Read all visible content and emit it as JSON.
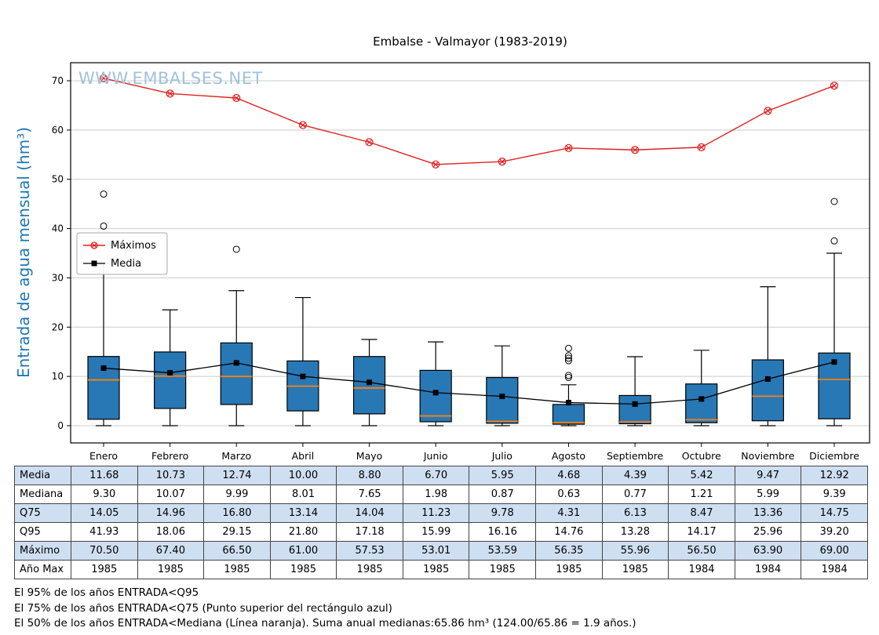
{
  "title": "Embalse - Valmayor (1983-2019)",
  "watermark": "WWW.EMBALSES.NET",
  "chart_data": {
    "type": "boxplot",
    "categories": [
      "Enero",
      "Febrero",
      "Marzo",
      "Abril",
      "Mayo",
      "Junio",
      "Julio",
      "Agosto",
      "Septiembre",
      "Octubre",
      "Noviembre",
      "Diciembre"
    ],
    "ylabel": "Entrada de agua mensual (hm³)",
    "yticks": [
      0,
      10,
      20,
      30,
      40,
      50,
      60,
      70
    ],
    "ylim": [
      -3.5,
      73.5
    ],
    "grid": true,
    "legend": {
      "position": "center-left",
      "entries": [
        "Máximos",
        "Media"
      ]
    },
    "series": [
      {
        "id": "maximos",
        "name": "Máximos",
        "type": "line",
        "color": "#e02020",
        "marker": "circled-x",
        "values": [
          70.5,
          67.4,
          66.5,
          61.0,
          57.53,
          53.01,
          53.59,
          56.35,
          55.96,
          56.5,
          63.9,
          69.0
        ]
      },
      {
        "id": "media",
        "name": "Media",
        "type": "line",
        "color": "#000000",
        "marker": "filled-square",
        "values": [
          11.68,
          10.73,
          12.74,
          10.0,
          8.8,
          6.7,
          5.95,
          4.68,
          4.39,
          5.42,
          9.47,
          12.92
        ]
      }
    ],
    "boxplot": {
      "box_fill": "#2878b5",
      "box_edge": "#000000",
      "median_color": "#ff7f0e",
      "whisker_low": [
        0,
        0,
        0,
        0,
        0,
        0,
        0,
        0,
        0,
        0,
        0,
        0
      ],
      "q1": [
        1.3,
        3.5,
        4.3,
        3.0,
        2.4,
        0.8,
        0.5,
        0.3,
        0.4,
        0.6,
        1.0,
        1.4
      ],
      "median": [
        9.3,
        10.07,
        9.99,
        8.01,
        7.65,
        1.98,
        0.87,
        0.63,
        0.77,
        1.21,
        5.99,
        9.39
      ],
      "q3": [
        14.05,
        14.96,
        16.8,
        13.14,
        14.04,
        11.23,
        9.78,
        4.31,
        6.13,
        8.47,
        13.36,
        14.75
      ],
      "whisker_high": [
        33.0,
        23.5,
        27.4,
        26.0,
        17.5,
        17.0,
        16.2,
        8.3,
        14.0,
        15.3,
        28.2,
        35.0
      ],
      "outliers": [
        [
          40.5,
          47.0
        ],
        [],
        [
          35.8
        ],
        [],
        [],
        [],
        [],
        [
          9.8,
          10.2,
          13.2,
          13.7,
          14.2,
          15.7
        ],
        [],
        [],
        [],
        [
          37.5,
          45.5
        ]
      ]
    }
  },
  "table": {
    "row_shade_color": "#cfdff2",
    "rows": [
      {
        "label": "Media",
        "values": [
          "11.68",
          "10.73",
          "12.74",
          "10.00",
          "8.80",
          "6.70",
          "5.95",
          "4.68",
          "4.39",
          "5.42",
          "9.47",
          "12.92"
        ]
      },
      {
        "label": "Mediana",
        "values": [
          "9.30",
          "10.07",
          "9.99",
          "8.01",
          "7.65",
          "1.98",
          "0.87",
          "0.63",
          "0.77",
          "1.21",
          "5.99",
          "9.39"
        ]
      },
      {
        "label": "Q75",
        "values": [
          "14.05",
          "14.96",
          "16.80",
          "13.14",
          "14.04",
          "11.23",
          "9.78",
          "4.31",
          "6.13",
          "8.47",
          "13.36",
          "14.75"
        ]
      },
      {
        "label": "Q95",
        "values": [
          "41.93",
          "18.06",
          "29.15",
          "21.80",
          "17.18",
          "15.99",
          "16.16",
          "14.76",
          "13.28",
          "14.17",
          "25.96",
          "39.20"
        ]
      },
      {
        "label": "Máximo",
        "values": [
          "70.50",
          "67.40",
          "66.50",
          "61.00",
          "57.53",
          "53.01",
          "53.59",
          "56.35",
          "55.96",
          "56.50",
          "63.90",
          "69.00"
        ]
      },
      {
        "label": "Año Max",
        "values": [
          "1985",
          "1985",
          "1985",
          "1985",
          "1985",
          "1985",
          "1985",
          "1985",
          "1985",
          "1984",
          "1984",
          "1984"
        ]
      }
    ]
  },
  "footnotes": [
    "El 95% de los años ENTRADA<Q95",
    "El 75% de los años ENTRADA<Q75 (Punto superior del rectángulo azul)",
    "El 50% de los años ENTRADA<Mediana (Línea naranja). Suma anual medianas:65.86 hm³ (124.00/65.86 = 1.9 años.)"
  ]
}
